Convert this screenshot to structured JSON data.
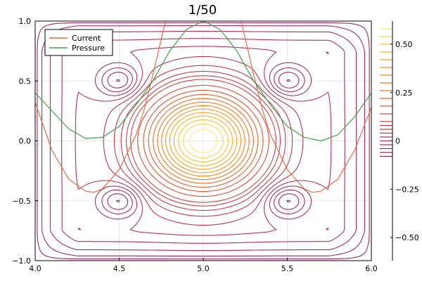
{
  "chart_data": {
    "type": "line",
    "title": "1/50",
    "xlabel": "",
    "ylabel": "",
    "xlim": [
      4.0,
      6.0
    ],
    "ylim": [
      -1.0,
      1.0
    ],
    "x_ticks": [
      {
        "value": 4.0,
        "label": "4.0"
      },
      {
        "value": 4.5,
        "label": "4.5"
      },
      {
        "value": 5.0,
        "label": "5.0"
      },
      {
        "value": 5.5,
        "label": "5.5"
      },
      {
        "value": 6.0,
        "label": "6.0"
      }
    ],
    "y_ticks": [
      {
        "value": -1.0,
        "label": "−1.0"
      },
      {
        "value": -0.5,
        "label": "−0.5"
      },
      {
        "value": 0.0,
        "label": "0.0"
      },
      {
        "value": 0.5,
        "label": "0.5"
      },
      {
        "value": 1.0,
        "label": "1.0"
      }
    ],
    "grid": true,
    "legend_position": "top-left",
    "series": [
      {
        "name": "Current",
        "color": "#e26f46",
        "x": [
          4.0,
          4.1,
          4.2,
          4.3,
          4.35,
          4.4,
          4.5,
          4.6,
          4.65,
          4.7,
          4.75,
          4.8,
          5.2,
          5.25,
          5.3,
          5.35,
          5.4,
          5.5,
          5.6,
          5.65,
          5.7,
          5.8,
          5.9,
          6.0
        ],
        "y": [
          0.32,
          -0.08,
          -0.32,
          -0.42,
          -0.43,
          -0.4,
          -0.24,
          0.05,
          0.27,
          0.55,
          0.85,
          1.15,
          1.15,
          0.85,
          0.55,
          0.27,
          0.05,
          -0.24,
          -0.4,
          -0.43,
          -0.42,
          -0.32,
          -0.08,
          0.28
        ]
      },
      {
        "name": "Pressure",
        "color": "#3da44d",
        "x": [
          4.0,
          4.1,
          4.2,
          4.3,
          4.4,
          4.5,
          4.6,
          4.7,
          4.8,
          4.9,
          5.0,
          5.1,
          5.2,
          5.3,
          5.4,
          5.5,
          5.6,
          5.7,
          5.8,
          5.9,
          6.0
        ],
        "y": [
          0.4,
          0.25,
          0.1,
          0.02,
          0.03,
          0.12,
          0.3,
          0.5,
          0.75,
          0.93,
          1.0,
          0.93,
          0.75,
          0.5,
          0.3,
          0.12,
          0.03,
          0.0,
          0.05,
          0.2,
          0.4
        ]
      }
    ],
    "contour": {
      "type": "contour",
      "field": "ψ(x,y) = 0.6·exp(-(((x-5)/0.18)^2 + (y/0.22)^2)) - 0.08·[exp(-((x-4.5)^2+(y-0.5)^2)/0.03) + exp(-((x-5.5)^2+(y-0.5)^2)/0.03) + exp(-((x-4.5)^2+(y+0.5)^2)/0.03) + exp(-((x-5.5)^2+(y+0.5)^2)/0.03)] fading to the box edges",
      "levels": [
        -0.08,
        -0.06,
        -0.04,
        -0.02,
        0.0,
        0.02,
        0.04,
        0.06,
        0.08,
        0.1,
        0.14,
        0.18,
        0.22,
        0.26,
        0.3,
        0.34,
        0.38,
        0.42,
        0.46,
        0.5,
        0.54,
        0.58
      ],
      "colorscale": "inferno",
      "colorbar_ticks": [
        {
          "value": 0.5,
          "label": "0.50"
        },
        {
          "value": 0.25,
          "label": "0.25"
        },
        {
          "value": 0.0,
          "label": "0"
        },
        {
          "value": -0.25,
          "label": "−0.25"
        },
        {
          "value": -0.5,
          "label": "−0.50"
        }
      ],
      "colorbar_range": [
        -0.62,
        0.62
      ]
    }
  }
}
